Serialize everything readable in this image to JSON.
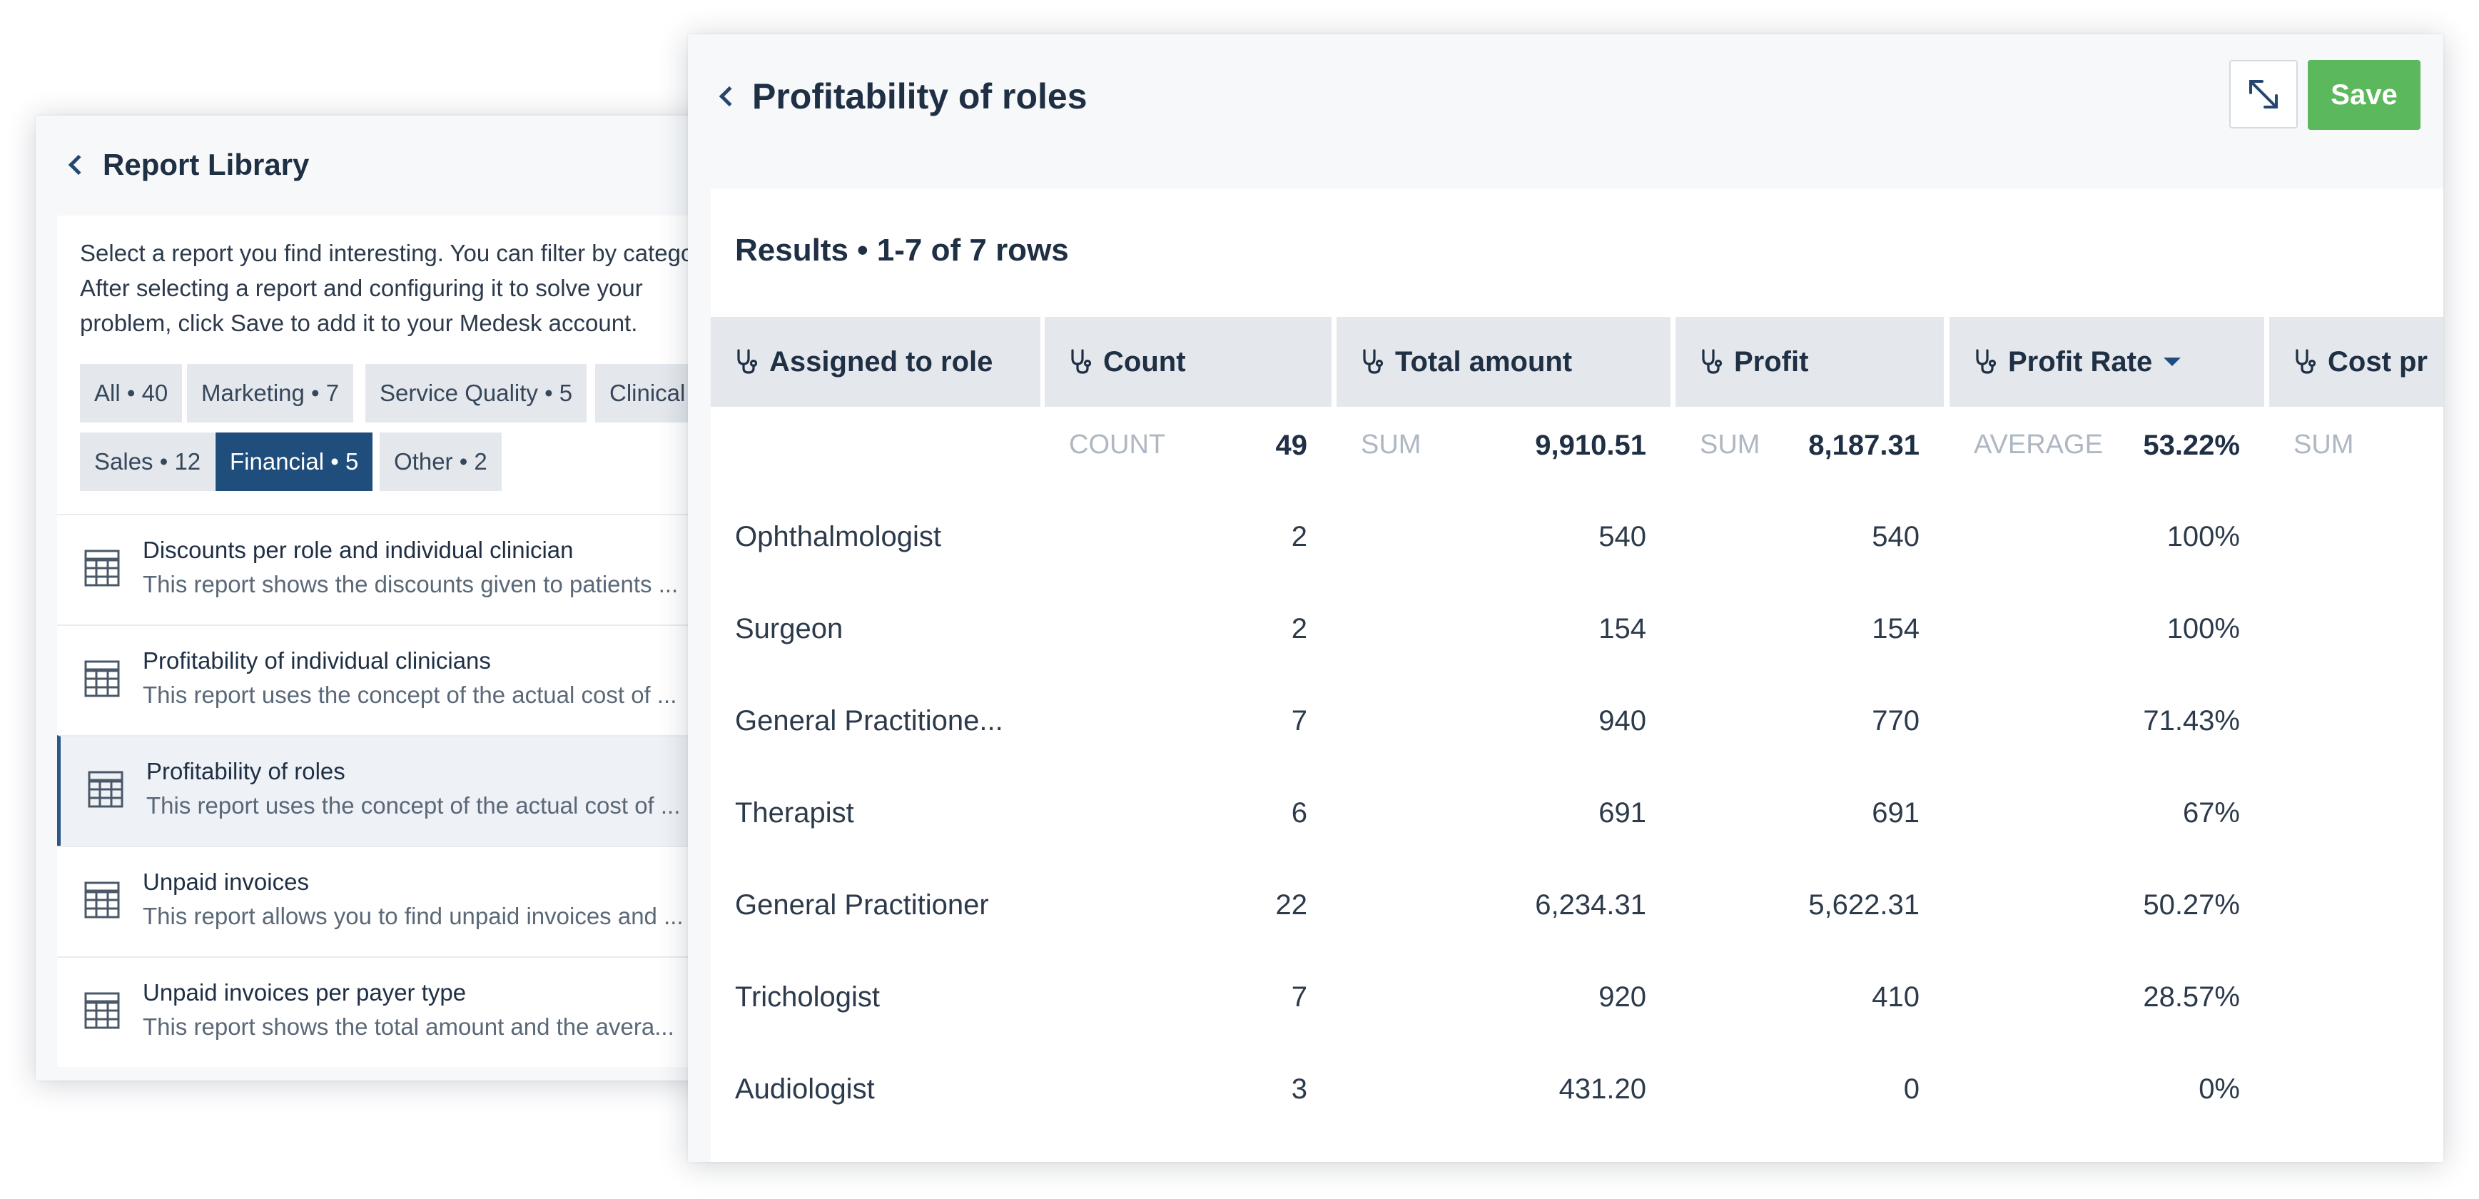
{
  "library": {
    "title": "Report Library",
    "intro": [
      "Select a report you find interesting. You can filter by category.",
      "After selecting a report and configuring it to solve your",
      "problem, click Save to add it to your Medesk account."
    ],
    "chips": [
      {
        "label": "All • 40"
      },
      {
        "label": "Marketing • 7"
      },
      {
        "label": "Service Quality • 5"
      },
      {
        "label": "Clinical"
      },
      {
        "label": "Sales • 12"
      },
      {
        "label": "Financial • 5",
        "active": true
      },
      {
        "label": "Other • 2"
      }
    ],
    "reports": [
      {
        "name": "Discounts per role and individual clinician",
        "desc": "This report shows the discounts given to patients ..."
      },
      {
        "name": "Profitability of individual clinicians",
        "desc": "This report uses the concept of the actual cost of ..."
      },
      {
        "name": "Profitability of roles",
        "desc": "This report uses the concept of the actual cost of ...",
        "selected": true
      },
      {
        "name": "Unpaid invoices",
        "desc": "This report allows you to find unpaid invoices and ..."
      },
      {
        "name": "Unpaid invoices per payer type",
        "desc": "This report shows the total amount and the avera..."
      }
    ]
  },
  "report": {
    "title": "Profitability of roles",
    "save_label": "Save",
    "results_title": "Results • 1-7 of 7 rows",
    "columns": [
      {
        "label": "Assigned to role",
        "agg_label": "",
        "agg_value": ""
      },
      {
        "label": "Count",
        "agg_label": "COUNT",
        "agg_value": "49"
      },
      {
        "label": "Total amount",
        "agg_label": "SUM",
        "agg_value": "9,910.51"
      },
      {
        "label": "Profit",
        "agg_label": "SUM",
        "agg_value": "8,187.31"
      },
      {
        "label": "Profit Rate",
        "agg_label": "AVERAGE",
        "agg_value": "53.22%",
        "sorted": true
      },
      {
        "label": "Cost pr",
        "agg_label": "SUM",
        "agg_value": ""
      }
    ],
    "rows": [
      [
        "Ophthalmologist",
        "2",
        "540",
        "540",
        "100%"
      ],
      [
        "Surgeon",
        "2",
        "154",
        "154",
        "100%"
      ],
      [
        "General Practitione...",
        "7",
        "940",
        "770",
        "71.43%"
      ],
      [
        "Therapist",
        "6",
        "691",
        "691",
        "67%"
      ],
      [
        "General Practitioner",
        "22",
        "6,234.31",
        "5,622.31",
        "50.27%"
      ],
      [
        "Trichologist",
        "7",
        "920",
        "410",
        "28.57%"
      ],
      [
        "Audiologist",
        "3",
        "431.20",
        "0",
        "0%"
      ]
    ]
  },
  "icons": {
    "back": "chevron-left-icon",
    "expand": "expand-icon",
    "table": "table-icon",
    "column": "stethoscope-icon",
    "sort": "sort-descending-icon"
  }
}
